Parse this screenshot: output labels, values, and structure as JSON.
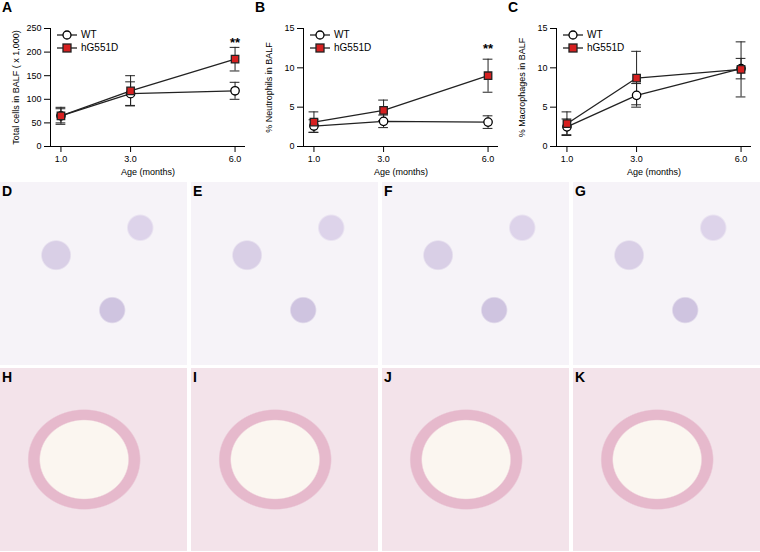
{
  "chart_data": [
    {
      "type": "line",
      "title": "A",
      "x_label": "Age (months)",
      "y_label": "Total cells in BALF ( x 1,000)",
      "x": [
        1,
        3,
        6
      ],
      "xlim": [
        0.7,
        6.3
      ],
      "xticks": [
        1,
        3,
        6
      ],
      "ylim": [
        0,
        250
      ],
      "yticks": [
        0,
        50,
        100,
        150,
        200,
        250
      ],
      "legend": "upper left",
      "series": [
        {
          "name": "WT",
          "color": "#000000",
          "marker": "circle",
          "values": [
            65,
            112,
            118
          ],
          "errors": [
            15,
            25,
            18
          ]
        },
        {
          "name": "hG551D",
          "color": "#d62020",
          "marker": "square",
          "values": [
            65,
            118,
            185
          ],
          "errors": [
            18,
            32,
            25
          ]
        }
      ],
      "annotations": [
        {
          "x": 6,
          "y": 220,
          "text": "**"
        }
      ]
    },
    {
      "type": "line",
      "title": "B",
      "x_label": "Age (months)",
      "y_label": "% Neutrophils in BALF",
      "x": [
        1,
        3,
        6
      ],
      "xlim": [
        0.7,
        6.3
      ],
      "xticks": [
        1,
        3,
        6
      ],
      "ylim": [
        0,
        15
      ],
      "yticks": [
        0,
        5,
        10,
        15
      ],
      "legend": "upper left",
      "series": [
        {
          "name": "WT",
          "color": "#000000",
          "marker": "circle",
          "values": [
            2.6,
            3.2,
            3.1
          ],
          "errors": [
            0.8,
            0.8,
            0.8
          ]
        },
        {
          "name": "hG551D",
          "color": "#d62020",
          "marker": "square",
          "values": [
            3.1,
            4.6,
            9.0
          ],
          "errors": [
            1.3,
            1.3,
            2.1
          ]
        }
      ],
      "annotations": [
        {
          "x": 6,
          "y": 12.4,
          "text": "**"
        }
      ]
    },
    {
      "type": "line",
      "title": "C",
      "x_label": "Age (months)",
      "y_label": "% Macrophages in BALF",
      "x": [
        1,
        3,
        6
      ],
      "xlim": [
        0.7,
        6.3
      ],
      "xticks": [
        1,
        3,
        6
      ],
      "ylim": [
        0,
        15
      ],
      "yticks": [
        0,
        5,
        10,
        15
      ],
      "legend": "upper left",
      "series": [
        {
          "name": "WT",
          "color": "#000000",
          "marker": "circle",
          "values": [
            2.5,
            6.5,
            9.9
          ],
          "errors": [
            1.0,
            1.5,
            1.3
          ]
        },
        {
          "name": "hG551D",
          "color": "#d62020",
          "marker": "square",
          "values": [
            2.9,
            8.7,
            9.8
          ],
          "errors": [
            1.5,
            3.4,
            3.5
          ]
        }
      ],
      "annotations": []
    }
  ],
  "image_panels": [
    "D",
    "E",
    "F",
    "G",
    "H",
    "I",
    "J",
    "K"
  ]
}
